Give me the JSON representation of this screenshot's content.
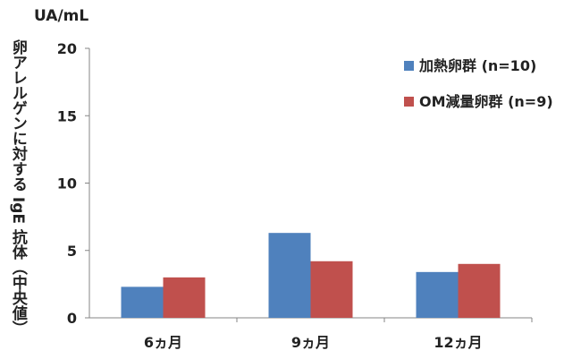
{
  "chart_data": {
    "type": "bar",
    "unit_label": "UA/mL",
    "ylabel": "卵アレルゲンに対する IgE 抗体（中央値）",
    "xlabel": "",
    "categories": [
      "6ヵ月",
      "9ヵ月",
      "12ヵ月"
    ],
    "series": [
      {
        "name": "加熱卵群 (n=10)",
        "values": [
          2.3,
          6.3,
          3.4
        ],
        "color": "#4f81bd"
      },
      {
        "name": "OM減量卵群 (n=9)",
        "values": [
          3.0,
          4.2,
          4.0
        ],
        "color": "#c0504d"
      }
    ],
    "ylim": [
      0,
      20
    ],
    "yticks": [
      0,
      5,
      10,
      15,
      20
    ],
    "grid": false,
    "legend_position": "top-right"
  }
}
